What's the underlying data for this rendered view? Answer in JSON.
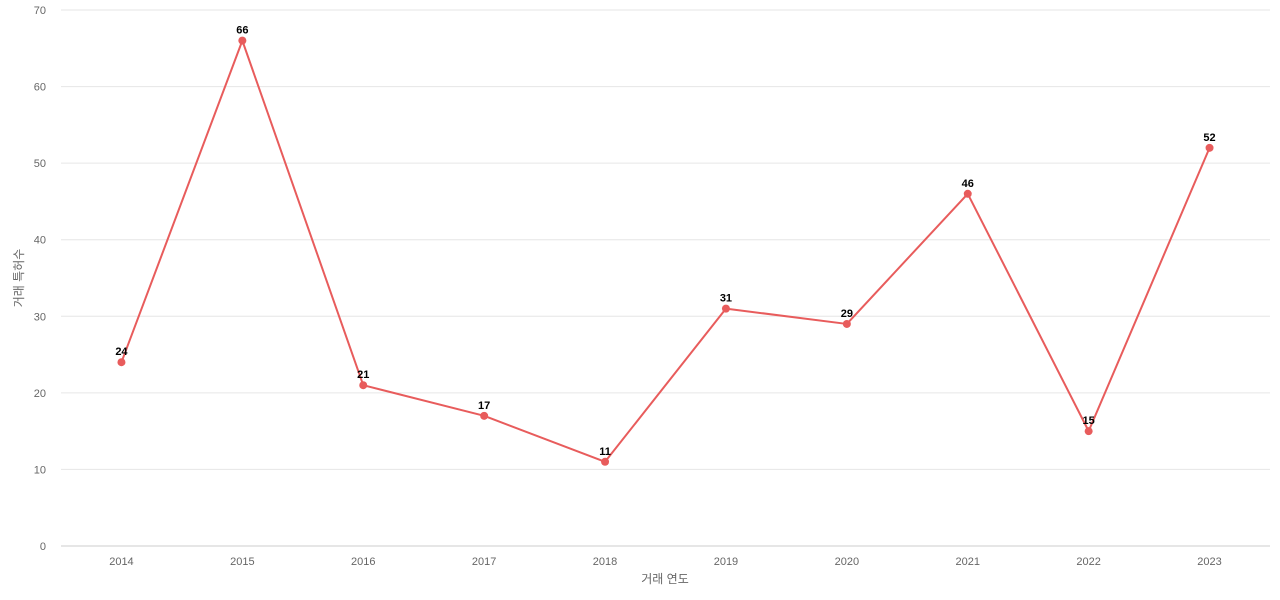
{
  "chart_data": {
    "type": "line",
    "title": "",
    "xlabel": "거래 연도",
    "ylabel": "거래 특허수",
    "categories": [
      "2014",
      "2015",
      "2016",
      "2017",
      "2018",
      "2019",
      "2020",
      "2021",
      "2022",
      "2023"
    ],
    "series": [
      {
        "values": [
          24,
          66,
          21,
          17,
          11,
          31,
          29,
          46,
          15,
          52
        ],
        "color": "#e85c5c"
      }
    ],
    "ylim": [
      0,
      70
    ],
    "yticks": [
      0,
      10,
      20,
      30,
      40,
      50,
      60,
      70
    ],
    "grid": true,
    "data_labels": true
  }
}
